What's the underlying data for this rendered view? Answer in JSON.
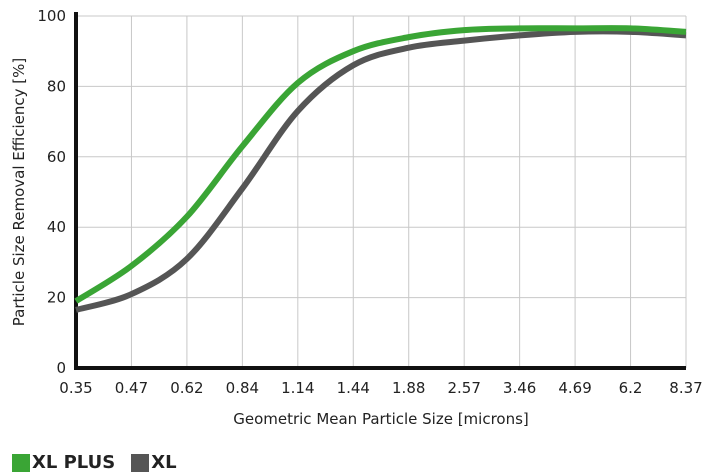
{
  "chart_data": {
    "type": "line",
    "xlabel": "Geometric Mean Particle Size [microns]",
    "ylabel": "Particle Size Removal Efficiency [%]",
    "categories": [
      "0.35",
      "0.47",
      "0.62",
      "0.84",
      "1.14",
      "1.44",
      "1.88",
      "2.57",
      "3.46",
      "4.69",
      "6.2",
      "8.37"
    ],
    "ylim": [
      0,
      100
    ],
    "yticks": [
      0,
      20,
      40,
      60,
      80,
      100
    ],
    "grid": true,
    "legend_position": "bottom-left",
    "series": [
      {
        "name": "XL PLUS",
        "color": "#3aa535",
        "values": [
          19,
          29,
          43,
          63,
          81,
          90,
          94,
          96,
          96.5,
          96.5,
          96.5,
          95.5
        ]
      },
      {
        "name": "XL",
        "color": "#555555",
        "values": [
          16.5,
          21,
          31,
          51,
          73,
          86,
          91,
          93,
          94.5,
          95.5,
          95.5,
          94.5
        ]
      }
    ]
  }
}
